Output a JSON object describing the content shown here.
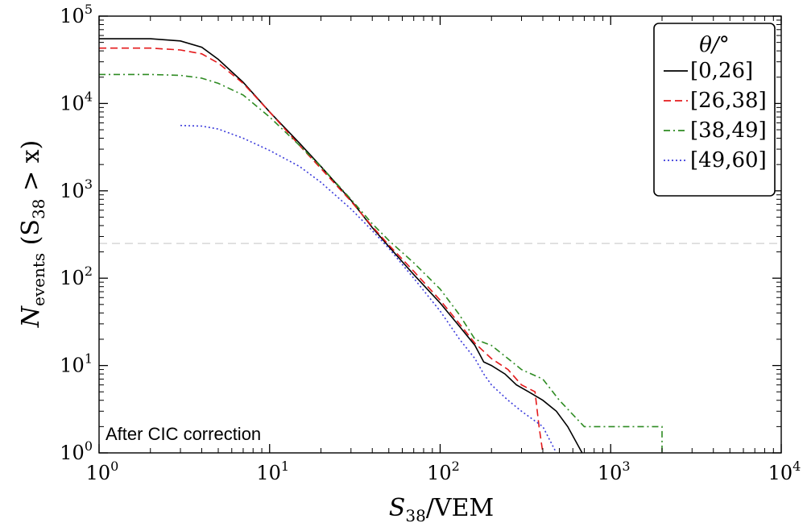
{
  "chart_data": {
    "type": "line",
    "x_scale": "log",
    "y_scale": "log",
    "xlim": [
      1,
      10000
    ],
    "ylim": [
      1,
      100000
    ],
    "x_ticks": [
      {
        "value": 1,
        "base": "10",
        "exp": "0"
      },
      {
        "value": 10,
        "base": "10",
        "exp": "1"
      },
      {
        "value": 100,
        "base": "10",
        "exp": "2"
      },
      {
        "value": 1000,
        "base": "10",
        "exp": "3"
      },
      {
        "value": 10000,
        "base": "10",
        "exp": "4"
      }
    ],
    "y_ticks": [
      {
        "value": 1,
        "base": "10",
        "exp": "0"
      },
      {
        "value": 10,
        "base": "10",
        "exp": "1"
      },
      {
        "value": 100,
        "base": "10",
        "exp": "2"
      },
      {
        "value": 1000,
        "base": "10",
        "exp": "3"
      },
      {
        "value": 10000,
        "base": "10",
        "exp": "4"
      },
      {
        "value": 100000,
        "base": "10",
        "exp": "5"
      }
    ],
    "xlabel": {
      "main": "S",
      "sub": "38",
      "rest": "/VEM"
    },
    "ylabel": {
      "main": "N",
      "sub": "events",
      "rest1": " (S",
      "sub2": "38",
      "rest2": " > x)"
    },
    "reference_line_y": 250,
    "annotation": "After CIC correction",
    "legend": {
      "title": "θ/°",
      "position": "top-right"
    },
    "series": [
      {
        "name": "[0,26]",
        "color": "#000000",
        "dash": "solid",
        "points": [
          [
            1,
            55000
          ],
          [
            2,
            55000
          ],
          [
            3,
            52000
          ],
          [
            4,
            44000
          ],
          [
            5,
            32000
          ],
          [
            7,
            17500
          ],
          [
            10,
            8000
          ],
          [
            15,
            3500
          ],
          [
            20,
            1900
          ],
          [
            30,
            780
          ],
          [
            40,
            380
          ],
          [
            50,
            230
          ],
          [
            70,
            110
          ],
          [
            100,
            52
          ],
          [
            130,
            28
          ],
          [
            160,
            17
          ],
          [
            180,
            11
          ],
          [
            200,
            10
          ],
          [
            240,
            8
          ],
          [
            280,
            6
          ],
          [
            330,
            5
          ],
          [
            400,
            4
          ],
          [
            480,
            3
          ],
          [
            560,
            2
          ],
          [
            680,
            1
          ]
        ]
      },
      {
        "name": "[26,38]",
        "color": "#e41a1c",
        "dash": "dashed",
        "points": [
          [
            1,
            43000
          ],
          [
            2,
            43000
          ],
          [
            3,
            41000
          ],
          [
            4,
            37000
          ],
          [
            5,
            29000
          ],
          [
            7,
            17000
          ],
          [
            10,
            8000
          ],
          [
            15,
            3300
          ],
          [
            20,
            1800
          ],
          [
            30,
            760
          ],
          [
            40,
            390
          ],
          [
            50,
            240
          ],
          [
            70,
            120
          ],
          [
            100,
            56
          ],
          [
            130,
            30
          ],
          [
            160,
            18
          ],
          [
            200,
            12
          ],
          [
            250,
            9
          ],
          [
            300,
            6
          ],
          [
            360,
            5
          ],
          [
            380,
            2
          ],
          [
            400,
            1
          ]
        ]
      },
      {
        "name": "[38,49]",
        "color": "#2e8b22",
        "dash": "dashdot",
        "points": [
          [
            1,
            21500
          ],
          [
            2,
            21500
          ],
          [
            3,
            21000
          ],
          [
            4,
            19500
          ],
          [
            5,
            17000
          ],
          [
            7,
            12500
          ],
          [
            10,
            7000
          ],
          [
            15,
            3300
          ],
          [
            20,
            1900
          ],
          [
            30,
            800
          ],
          [
            40,
            420
          ],
          [
            50,
            270
          ],
          [
            70,
            150
          ],
          [
            100,
            75
          ],
          [
            130,
            38
          ],
          [
            160,
            20
          ],
          [
            200,
            17
          ],
          [
            250,
            12
          ],
          [
            300,
            9
          ],
          [
            400,
            7
          ],
          [
            500,
            4
          ],
          [
            700,
            2
          ],
          [
            1000,
            2
          ],
          [
            2000,
            2
          ],
          [
            2000,
            1
          ]
        ]
      },
      {
        "name": "[49,60]",
        "color": "#3b3bdb",
        "dash": "dotted",
        "points": [
          [
            3,
            5600
          ],
          [
            4,
            5500
          ],
          [
            5,
            5100
          ],
          [
            7,
            4000
          ],
          [
            10,
            2900
          ],
          [
            15,
            1900
          ],
          [
            20,
            1250
          ],
          [
            30,
            620
          ],
          [
            40,
            350
          ],
          [
            50,
            220
          ],
          [
            70,
            100
          ],
          [
            100,
            42
          ],
          [
            130,
            20
          ],
          [
            160,
            12
          ],
          [
            180,
            8
          ],
          [
            200,
            6
          ],
          [
            250,
            4
          ],
          [
            300,
            3
          ],
          [
            400,
            2
          ],
          [
            480,
            1
          ]
        ]
      }
    ]
  }
}
